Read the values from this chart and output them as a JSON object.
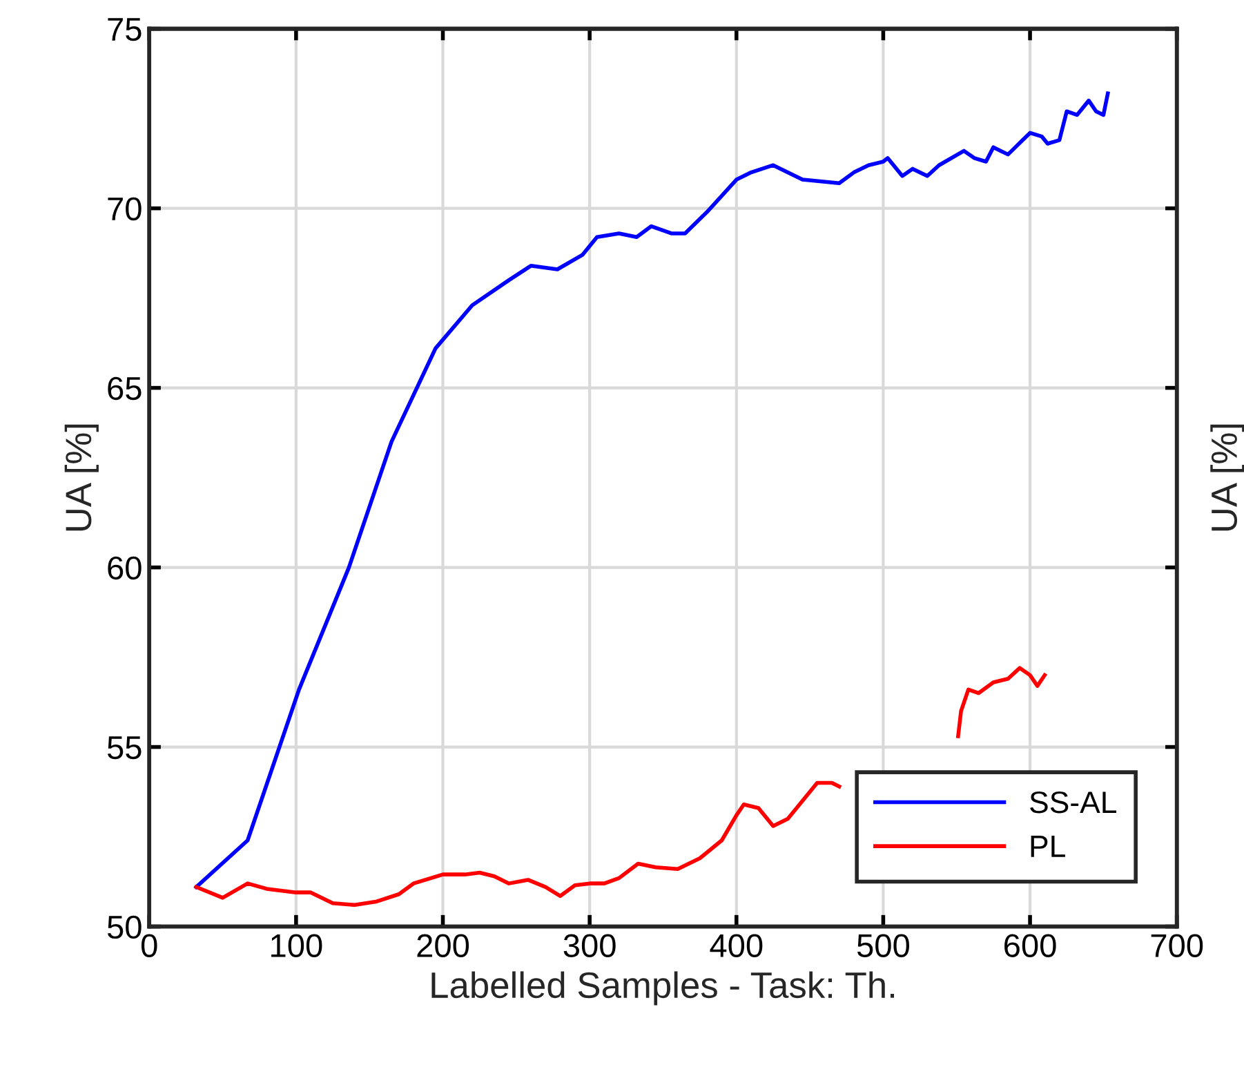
{
  "chart_data": {
    "type": "line",
    "xlabel": "Labelled Samples - Task: Th.",
    "ylabel": "UA [%]",
    "y2label": "UA [%]",
    "xlim": [
      0,
      700
    ],
    "xticks": [
      0,
      100,
      200,
      300,
      400,
      500,
      600,
      700
    ],
    "ylim": [
      50,
      75
    ],
    "yticks": [
      50,
      55,
      60,
      65,
      70,
      75
    ],
    "grid": true,
    "legend": "bottom right",
    "line_style": "solid",
    "series": [
      {
        "name": "SS-AL",
        "color": "#0000ff",
        "x": [
          32,
          67,
          102,
          136,
          165,
          195,
          220,
          245,
          260,
          278,
          295,
          305,
          320,
          332,
          342,
          356,
          365,
          380,
          400,
          410,
          425,
          445,
          470,
          480,
          490,
          500,
          503,
          513,
          520,
          530,
          538,
          555,
          562,
          570,
          575,
          580,
          585,
          595,
          600,
          608,
          612,
          620,
          625,
          632,
          640,
          645,
          650,
          653
        ],
        "values": [
          51.1,
          52.4,
          56.6,
          60.0,
          63.5,
          66.1,
          67.3,
          68.0,
          68.4,
          68.3,
          68.7,
          69.2,
          69.3,
          69.2,
          69.5,
          69.3,
          69.3,
          69.9,
          70.8,
          71.0,
          71.2,
          70.8,
          70.7,
          71.0,
          71.2,
          71.3,
          71.4,
          70.9,
          71.1,
          70.9,
          71.2,
          71.6,
          71.4,
          71.3,
          71.7,
          71.6,
          71.5,
          71.9,
          72.1,
          72.0,
          71.8,
          71.9,
          72.7,
          72.6,
          73.0,
          72.7,
          72.6,
          73.2
        ]
      },
      {
        "name": "PL",
        "color": "#ff0000",
        "x": [
          32,
          50,
          67,
          80,
          100,
          110,
          125,
          140,
          155,
          170,
          180,
          200,
          215,
          225,
          235,
          245,
          258,
          270,
          280,
          290,
          300,
          310,
          320,
          333,
          345,
          360,
          375,
          390,
          400,
          405,
          415,
          425,
          435,
          445,
          455,
          465,
          470,
          510,
          551,
          553,
          558,
          565,
          575,
          585,
          593,
          600,
          605,
          610
        ],
        "values": [
          51.1,
          50.8,
          51.2,
          51.05,
          50.95,
          50.95,
          50.65,
          50.6,
          50.7,
          50.9,
          51.2,
          51.45,
          51.45,
          51.5,
          51.4,
          51.2,
          51.3,
          51.1,
          50.85,
          51.15,
          51.2,
          51.2,
          51.35,
          51.75,
          51.65,
          51.6,
          51.9,
          52.4,
          53.1,
          53.4,
          53.3,
          52.8,
          53.0,
          53.5,
          54.0,
          54.0,
          53.9,
          null,
          55.3,
          56.0,
          56.6,
          56.5,
          56.8,
          56.9,
          57.2,
          57.0,
          56.7,
          57.0
        ]
      }
    ]
  }
}
